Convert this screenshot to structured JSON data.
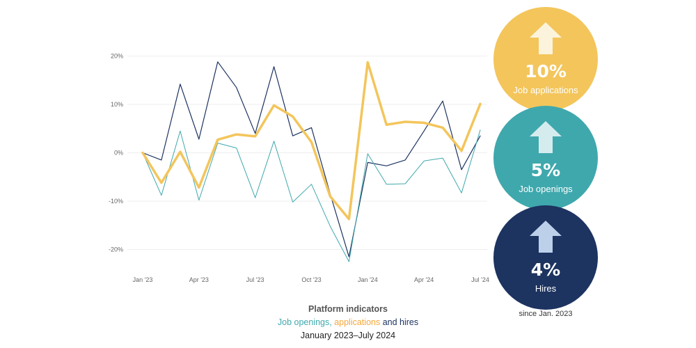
{
  "chart_data": {
    "type": "line",
    "title": "Platform indicators",
    "subtitle_parts": [
      "Job openings",
      ", ",
      "applications",
      " and ",
      "hires"
    ],
    "date_range": "January 2023–July 2024",
    "x_ticks": [
      "Jan '23",
      "Apr '23",
      "Jul '23",
      "Oct '23",
      "Jan '24",
      "Apr '24",
      "Jul '24"
    ],
    "y_ticks": [
      "20%",
      "10%",
      "0%",
      "-10%",
      "-20%"
    ],
    "y_tick_values": [
      20,
      10,
      0,
      -10,
      -20
    ],
    "ylim": [
      -25,
      22
    ],
    "x_months": [
      "2023-01",
      "2023-02",
      "2023-03",
      "2023-04",
      "2023-05",
      "2023-06",
      "2023-07",
      "2023-08",
      "2023-09",
      "2023-10",
      "2023-11",
      "2023-12",
      "2024-01",
      "2024-02",
      "2024-03",
      "2024-04",
      "2024-05",
      "2024-06",
      "2024-07"
    ],
    "grid": true,
    "series": [
      {
        "name": "Hires",
        "color": "#1d3360",
        "width": 1.2,
        "values": [
          0,
          -1.5,
          14.2,
          2.8,
          18.8,
          13.5,
          4.0,
          17.8,
          3.5,
          5.2,
          -8.5,
          -21.5,
          -2.0,
          -2.7,
          -1.5,
          4.5,
          10.7,
          -3.5,
          3.5
        ]
      },
      {
        "name": "Job openings",
        "color": "#3fa8ad",
        "width": 1.0,
        "values": [
          0,
          -8.8,
          4.5,
          -9.8,
          2.0,
          1.0,
          -9.3,
          2.4,
          -10.2,
          -6.5,
          -15.2,
          -22.5,
          -0.2,
          -6.5,
          -6.4,
          -1.7,
          -1.1,
          -8.3,
          4.7
        ]
      },
      {
        "name": "Job applications",
        "color": "#f3c55b",
        "width": 3.5,
        "values": [
          0,
          -6.2,
          0.2,
          -7.2,
          2.7,
          3.8,
          3.4,
          9.8,
          7.5,
          2.2,
          -9.0,
          -13.7,
          18.7,
          5.8,
          6.4,
          6.2,
          5.2,
          0.4,
          10.1
        ]
      }
    ]
  },
  "stats": [
    {
      "value": "10%",
      "label": "Job applications",
      "color": "#f3c55b",
      "arrow_color": "#fbf3dc"
    },
    {
      "value": "5%",
      "label": "Job openings",
      "color": "#3fa8ad",
      "arrow_color": "#d5ecee"
    },
    {
      "value": "4%",
      "label": "Hires",
      "color": "#1d3360",
      "arrow_color": "#bcd0ea"
    }
  ],
  "stats_caption": "since Jan. 2023",
  "colors": {
    "openings": "#3fa8ad",
    "applications": "#f3c55b",
    "hires": "#1d3360",
    "subtitle_text": "#1d3360"
  }
}
